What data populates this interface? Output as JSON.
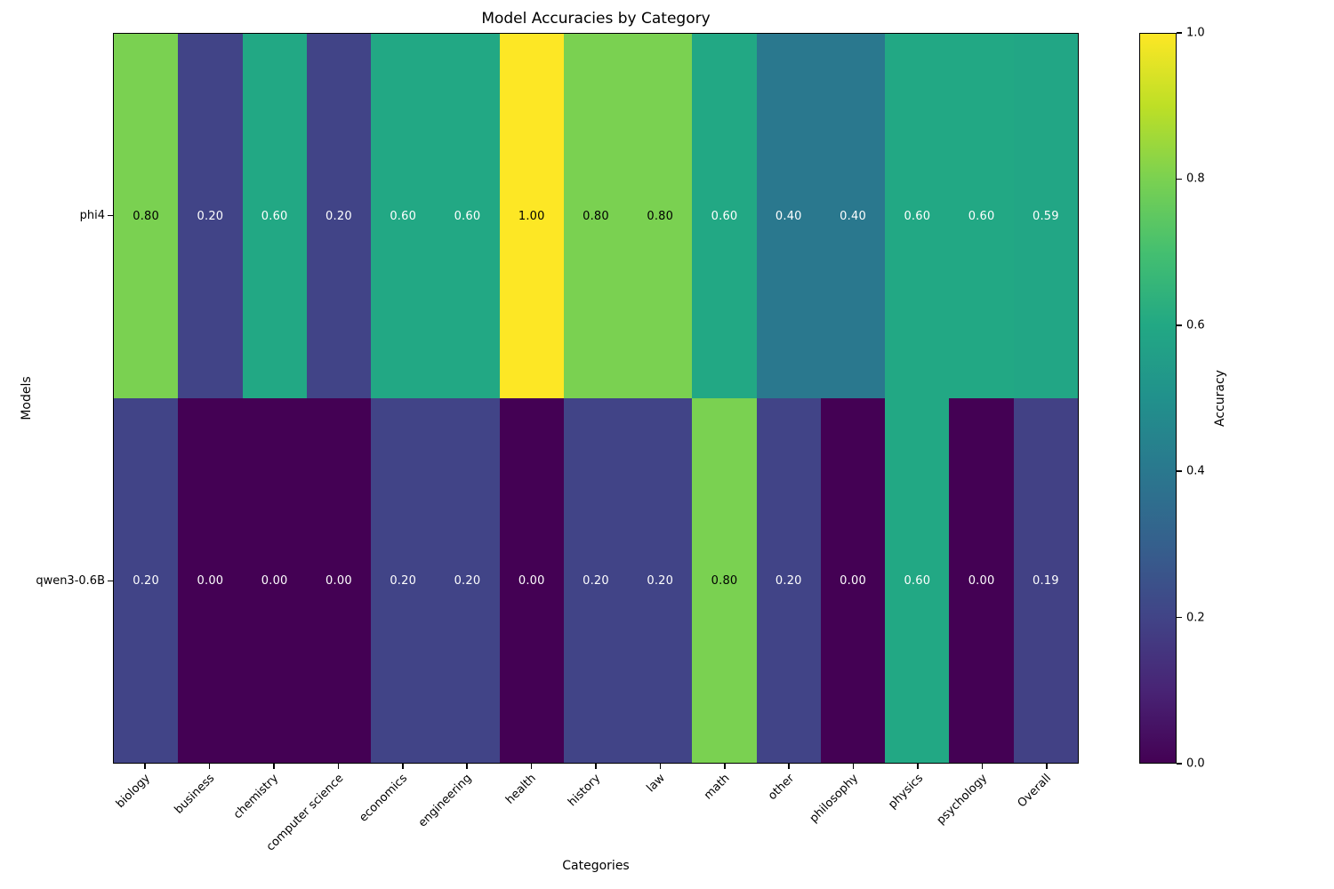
{
  "figure": {
    "title": "Model Accuracies by Category",
    "xlabel": "Categories",
    "ylabel": "Models"
  },
  "colorbar": {
    "label": "Accuracy",
    "tick_labels": [
      "0.0",
      "0.2",
      "0.4",
      "0.6",
      "0.8",
      "1.0"
    ],
    "tick_values": [
      0.0,
      0.2,
      0.4,
      0.6,
      0.8,
      1.0
    ],
    "vmin": 0.0,
    "vmax": 1.0
  },
  "chart_data": {
    "type": "heatmap",
    "title": "Model Accuracies by Category",
    "xlabel": "Categories",
    "ylabel": "Models",
    "categories": [
      "biology",
      "business",
      "chemistry",
      "computer science",
      "economics",
      "engineering",
      "health",
      "history",
      "law",
      "math",
      "other",
      "philosophy",
      "physics",
      "psychology",
      "Overall"
    ],
    "series": [
      {
        "name": "phi4",
        "values": [
          0.8,
          0.2,
          0.6,
          0.2,
          0.6,
          0.6,
          1.0,
          0.8,
          0.8,
          0.6,
          0.4,
          0.4,
          0.6,
          0.6,
          0.59
        ]
      },
      {
        "name": "qwen3-0.6B",
        "values": [
          0.2,
          0.0,
          0.0,
          0.0,
          0.2,
          0.2,
          0.0,
          0.2,
          0.2,
          0.8,
          0.2,
          0.0,
          0.6,
          0.0,
          0.19
        ]
      }
    ],
    "vmin": 0.0,
    "vmax": 1.0,
    "cell_label_decimals": 2,
    "colormap": "viridis",
    "viridis_stops": [
      "#440154",
      "#482475",
      "#414487",
      "#35608D",
      "#2A788E",
      "#21918C",
      "#22A884",
      "#44BF70",
      "#7AD151",
      "#BDDF26",
      "#FDE725"
    ],
    "annotation_text_colors": {
      "light_cells": "#000000",
      "dark_cells": "#ffffff"
    },
    "legend_position": "colorbar-right",
    "grid": false
  }
}
